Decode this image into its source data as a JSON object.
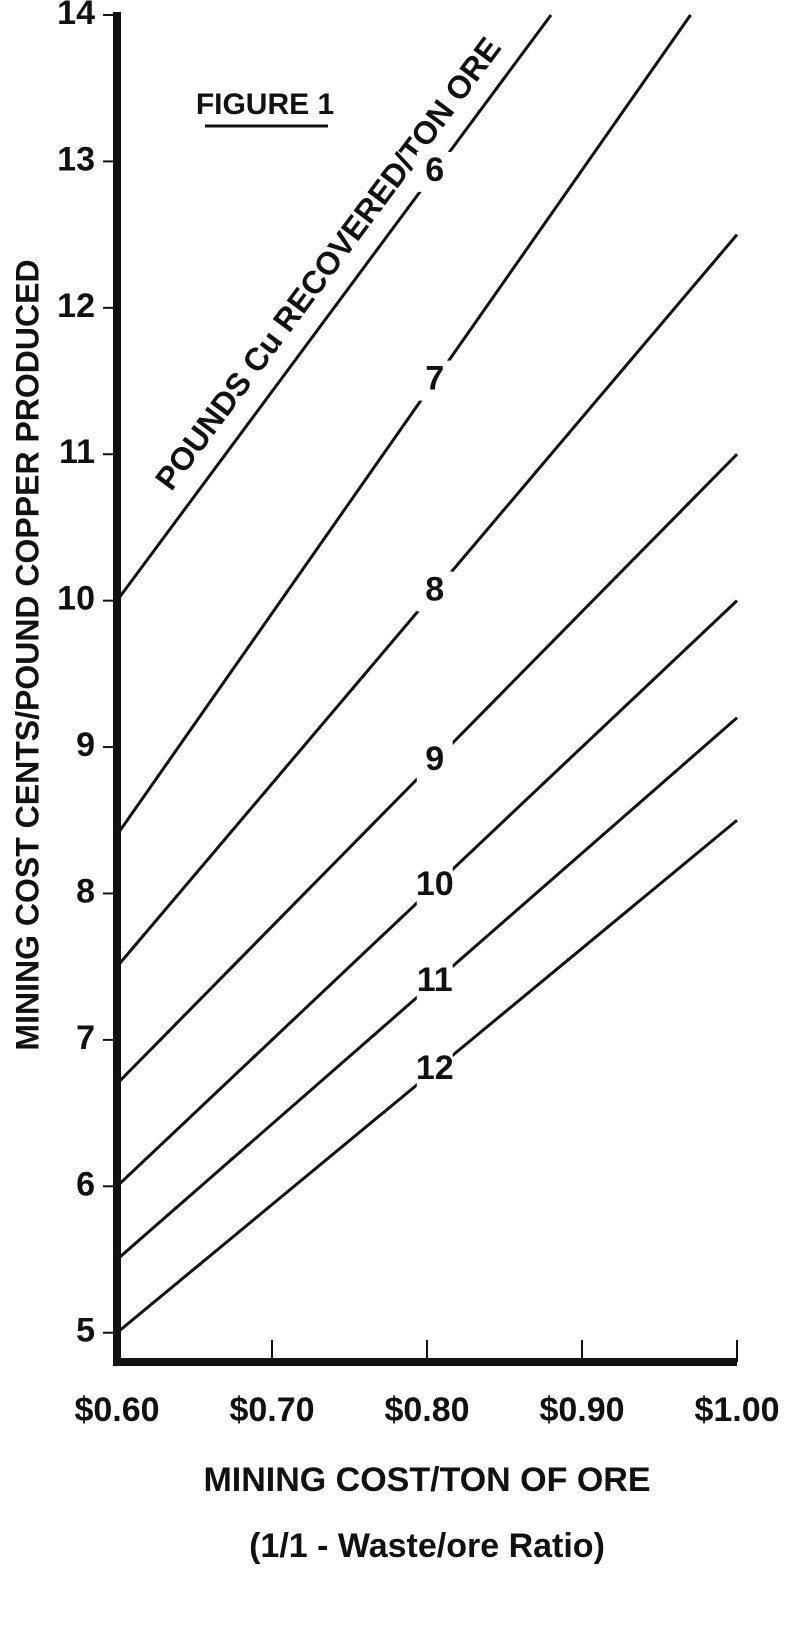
{
  "chart_data": {
    "type": "line",
    "title": "FIGURE 1",
    "annotation": "POUNDS Cu RECOVERED/TON ORE",
    "y_label": "MINING COST CENTS/POUND COPPER PRODUCED",
    "x_label": "MINING COST/TON OF ORE",
    "x_sublabel": "(1/1 - Waste/ore Ratio)",
    "xlim": [
      0.6,
      1.0
    ],
    "ylim": [
      4.8,
      14
    ],
    "xticks": [
      {
        "value": 0.6,
        "label": "$0.60"
      },
      {
        "value": 0.7,
        "label": "$0.70"
      },
      {
        "value": 0.8,
        "label": "$0.80"
      },
      {
        "value": 0.9,
        "label": "$0.90"
      },
      {
        "value": 1.0,
        "label": "$1.00"
      }
    ],
    "yticks": [
      5,
      6,
      7,
      8,
      9,
      10,
      11,
      12,
      13,
      14
    ],
    "label_x": 0.805,
    "color": "#111111",
    "series": [
      {
        "name": "6",
        "x": [
          0.6,
          0.88
        ],
        "values": [
          10,
          14
        ]
      },
      {
        "name": "7",
        "x": [
          0.6,
          0.97
        ],
        "values": [
          8.4,
          14
        ]
      },
      {
        "name": "8",
        "x": [
          0.6,
          1.0
        ],
        "values": [
          7.5,
          12.5
        ]
      },
      {
        "name": "9",
        "x": [
          0.6,
          1.0
        ],
        "values": [
          6.7,
          11.0
        ]
      },
      {
        "name": "10",
        "x": [
          0.6,
          1.0
        ],
        "values": [
          6.0,
          10.0
        ]
      },
      {
        "name": "11",
        "x": [
          0.6,
          1.0
        ],
        "values": [
          5.5,
          9.2
        ]
      },
      {
        "name": "12",
        "x": [
          0.6,
          1.0
        ],
        "values": [
          5.0,
          8.5
        ]
      }
    ]
  }
}
